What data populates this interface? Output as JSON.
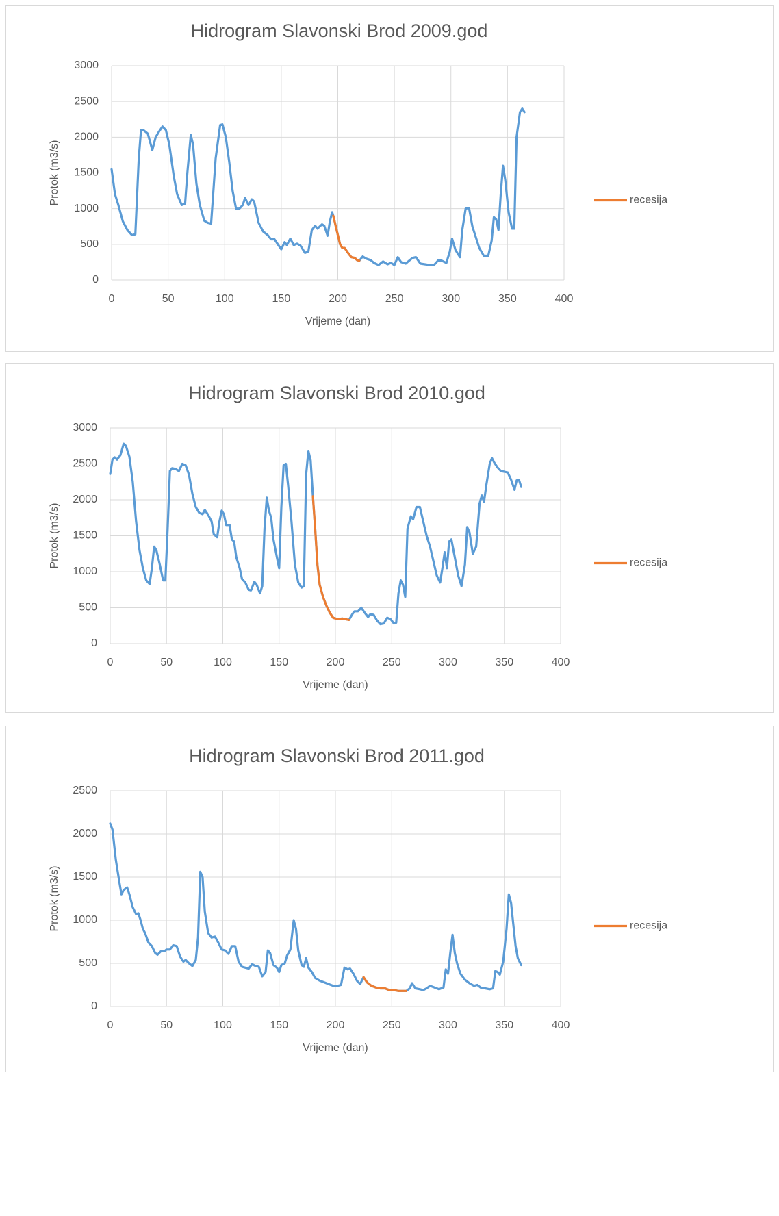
{
  "chart_data": [
    {
      "type": "line",
      "title": "Hidrogram Slavonski Brod 2009.god",
      "xlabel": "Vrijeme (dan)",
      "ylabel": "Protok (m3/s)",
      "xlim": [
        0,
        400
      ],
      "xticks": [
        0,
        50,
        100,
        150,
        200,
        250,
        300,
        350,
        400
      ],
      "ylim": [
        0,
        3000
      ],
      "yticks": [
        0,
        500,
        1000,
        1500,
        2000,
        2500,
        3000
      ],
      "grid": true,
      "legend": "right",
      "series": [
        {
          "color": "#5b9bd5",
          "x": [
            0,
            3,
            6,
            10,
            14,
            18,
            21,
            24,
            26,
            28,
            32,
            36,
            39,
            42,
            45,
            48,
            51,
            55,
            58,
            62,
            65,
            67,
            70,
            72,
            75,
            78,
            82,
            85,
            88,
            92,
            96,
            98,
            101,
            104,
            107,
            110,
            113,
            116,
            118,
            121,
            124,
            126,
            130,
            134,
            138,
            141,
            144,
            147,
            150,
            153,
            155,
            158,
            161,
            164,
            167,
            171,
            174,
            177,
            180,
            182,
            186,
            188,
            191,
            193,
            195,
            196,
            199,
            202,
            204,
            206,
            209,
            212,
            215,
            217,
            219,
            222,
            225,
            229,
            232,
            236,
            240,
            244,
            247,
            250,
            253,
            256,
            260,
            263,
            266,
            269,
            273,
            277,
            281,
            285,
            289,
            292,
            296,
            299,
            301,
            304,
            308,
            310,
            313,
            316,
            319,
            322,
            325,
            329,
            333,
            336,
            338,
            340,
            342,
            344,
            346,
            348,
            351,
            354,
            356,
            358,
            361,
            363,
            365
          ],
          "values": [
            1550,
            1200,
            1050,
            820,
            700,
            630,
            640,
            1700,
            2100,
            2100,
            2050,
            1820,
            2000,
            2080,
            2150,
            2100,
            1900,
            1450,
            1200,
            1050,
            1070,
            1500,
            2030,
            1900,
            1350,
            1050,
            830,
            800,
            790,
            1700,
            2170,
            2180,
            2000,
            1650,
            1250,
            1000,
            1000,
            1050,
            1150,
            1050,
            1130,
            1100,
            800,
            680,
            630,
            570,
            570,
            500,
            430,
            530,
            490,
            580,
            490,
            510,
            480,
            380,
            400,
            700,
            760,
            720,
            780,
            760,
            620,
            820,
            950,
            900,
            700,
            500,
            450,
            450,
            380,
            320,
            310,
            280,
            270,
            330,
            300,
            280,
            240,
            210,
            260,
            220,
            240,
            210,
            320,
            250,
            230,
            270,
            310,
            320,
            230,
            220,
            210,
            210,
            280,
            270,
            240,
            400,
            580,
            420,
            320,
            700,
            1000,
            1010,
            750,
            600,
            450,
            340,
            340,
            550,
            880,
            850,
            700,
            1200,
            1600,
            1400,
            950,
            720,
            720,
            2000,
            2350,
            2400,
            2350
          ]
        },
        {
          "name": "recesija",
          "color": "#ed7d31",
          "x": [
            196,
            199,
            202,
            204,
            206,
            209,
            212,
            215,
            217,
            219
          ],
          "values": [
            900,
            700,
            500,
            450,
            450,
            380,
            320,
            310,
            280,
            270
          ]
        }
      ]
    },
    {
      "type": "line",
      "title": "Hidrogram Slavonski Brod 2010.god",
      "xlabel": "Vrijeme (dan)",
      "ylabel": "Protok (m3/s)",
      "xlim": [
        0,
        400
      ],
      "xticks": [
        0,
        50,
        100,
        150,
        200,
        250,
        300,
        350,
        400
      ],
      "ylim": [
        0,
        3000
      ],
      "yticks": [
        0,
        500,
        1000,
        1500,
        2000,
        2500,
        3000
      ],
      "grid": true,
      "legend": "right",
      "series": [
        {
          "color": "#5b9bd5",
          "x": [
            0,
            2,
            4,
            6,
            9,
            12,
            14,
            17,
            20,
            23,
            26,
            29,
            32,
            35,
            37,
            39,
            41,
            44,
            47,
            49,
            51,
            53,
            55,
            58,
            61,
            64,
            67,
            70,
            73,
            76,
            79,
            82,
            84,
            87,
            90,
            92,
            95,
            97,
            99,
            101,
            103,
            106,
            108,
            110,
            112,
            115,
            117,
            120,
            123,
            125,
            128,
            130,
            133,
            135,
            137,
            139,
            141,
            143,
            145,
            148,
            150,
            152,
            154,
            156,
            158,
            161,
            164,
            167,
            170,
            172,
            174,
            176,
            178,
            180,
            182,
            184,
            186,
            189,
            192,
            195,
            198,
            202,
            206,
            209,
            212,
            215,
            217,
            220,
            223,
            226,
            229,
            231,
            234,
            237,
            240,
            243,
            246,
            249,
            252,
            254,
            256,
            258,
            260,
            262,
            264,
            267,
            269,
            272,
            275,
            278,
            281,
            284,
            287,
            290,
            293,
            295,
            297,
            299,
            301,
            303,
            306,
            309,
            312,
            315,
            317,
            319,
            322,
            325,
            328,
            330,
            332,
            334,
            337,
            339,
            341,
            344,
            347,
            350,
            353,
            356,
            359,
            361,
            363,
            365
          ],
          "values": [
            2360,
            2560,
            2590,
            2560,
            2620,
            2780,
            2750,
            2600,
            2250,
            1700,
            1300,
            1050,
            880,
            830,
            1050,
            1350,
            1300,
            1100,
            880,
            880,
            1600,
            2400,
            2440,
            2430,
            2400,
            2500,
            2480,
            2350,
            2080,
            1900,
            1820,
            1800,
            1860,
            1790,
            1700,
            1520,
            1480,
            1700,
            1850,
            1800,
            1650,
            1650,
            1450,
            1420,
            1200,
            1050,
            900,
            850,
            750,
            740,
            860,
            820,
            700,
            800,
            1600,
            2030,
            1850,
            1750,
            1450,
            1200,
            1050,
            1900,
            2480,
            2500,
            2200,
            1700,
            1100,
            850,
            780,
            800,
            2350,
            2680,
            2550,
            2050,
            1600,
            1100,
            820,
            650,
            530,
            430,
            360,
            340,
            350,
            340,
            330,
            410,
            450,
            450,
            500,
            430,
            370,
            410,
            400,
            320,
            270,
            280,
            360,
            340,
            280,
            290,
            700,
            880,
            820,
            650,
            1600,
            1770,
            1730,
            1900,
            1900,
            1700,
            1500,
            1350,
            1150,
            950,
            850,
            1050,
            1270,
            1050,
            1420,
            1450,
            1200,
            950,
            800,
            1100,
            1620,
            1550,
            1250,
            1350,
            1950,
            2060,
            1970,
            2200,
            2500,
            2580,
            2520,
            2450,
            2400,
            2390,
            2380,
            2280,
            2140,
            2270,
            2280,
            2180
          ]
        },
        {
          "name": "recesija",
          "color": "#ed7d31",
          "x": [
            180,
            182,
            184,
            186,
            189,
            192,
            195,
            198,
            202,
            206,
            209,
            212
          ],
          "values": [
            2050,
            1600,
            1100,
            820,
            650,
            530,
            430,
            360,
            340,
            350,
            340,
            330
          ]
        }
      ]
    },
    {
      "type": "line",
      "title": "Hidrogram Slavonski Brod 2011.god",
      "xlabel": "Vrijeme (dan)",
      "ylabel": "Protok (m3/s)",
      "xlim": [
        0,
        400
      ],
      "xticks": [
        0,
        50,
        100,
        150,
        200,
        250,
        300,
        350,
        400
      ],
      "ylim": [
        0,
        2500
      ],
      "yticks": [
        0,
        500,
        1000,
        1500,
        2000,
        2500
      ],
      "grid": true,
      "legend": "right",
      "series": [
        {
          "color": "#5b9bd5",
          "x": [
            0,
            2,
            5,
            8,
            10,
            12,
            15,
            17,
            20,
            23,
            25,
            27,
            29,
            31,
            34,
            37,
            40,
            42,
            45,
            48,
            50,
            53,
            56,
            59,
            62,
            65,
            67,
            70,
            73,
            76,
            78,
            80,
            82,
            84,
            87,
            90,
            93,
            96,
            99,
            102,
            105,
            108,
            111,
            114,
            117,
            120,
            123,
            126,
            129,
            132,
            135,
            138,
            140,
            142,
            145,
            148,
            150,
            152,
            155,
            157,
            160,
            163,
            165,
            167,
            170,
            172,
            174,
            176,
            179,
            182,
            186,
            190,
            194,
            198,
            202,
            205,
            208,
            211,
            213,
            216,
            219,
            222,
            225,
            228,
            232,
            236,
            240,
            244,
            248,
            252,
            256,
            260,
            263,
            266,
            268,
            271,
            275,
            278,
            281,
            284,
            288,
            292,
            296,
            298,
            300,
            302,
            304,
            306,
            308,
            311,
            315,
            319,
            323,
            326,
            329,
            333,
            337,
            340,
            342,
            344,
            346,
            349,
            352,
            354,
            356,
            358,
            360,
            362,
            365
          ],
          "values": [
            2120,
            2050,
            1700,
            1450,
            1300,
            1350,
            1380,
            1300,
            1150,
            1070,
            1080,
            1000,
            900,
            850,
            740,
            700,
            620,
            600,
            640,
            640,
            660,
            660,
            710,
            700,
            580,
            520,
            540,
            500,
            470,
            540,
            800,
            1560,
            1500,
            1100,
            850,
            800,
            810,
            740,
            660,
            650,
            610,
            700,
            700,
            520,
            460,
            450,
            440,
            490,
            470,
            460,
            350,
            400,
            650,
            620,
            480,
            450,
            400,
            480,
            500,
            590,
            660,
            1000,
            900,
            650,
            480,
            460,
            560,
            450,
            400,
            330,
            300,
            280,
            260,
            240,
            240,
            250,
            450,
            430,
            440,
            380,
            300,
            260,
            340,
            280,
            240,
            220,
            210,
            210,
            190,
            190,
            180,
            180,
            180,
            210,
            270,
            210,
            200,
            190,
            210,
            240,
            220,
            200,
            220,
            430,
            380,
            620,
            830,
            620,
            500,
            380,
            310,
            270,
            240,
            250,
            220,
            210,
            200,
            210,
            410,
            400,
            370,
            520,
            900,
            1300,
            1200,
            950,
            700,
            560,
            480
          ]
        },
        {
          "name": "recesija",
          "color": "#ed7d31",
          "x": [
            225,
            228,
            232,
            236,
            240,
            244,
            248,
            252,
            256,
            260,
            263
          ],
          "values": [
            340,
            280,
            240,
            220,
            210,
            210,
            190,
            190,
            180,
            180,
            180
          ]
        }
      ]
    }
  ]
}
